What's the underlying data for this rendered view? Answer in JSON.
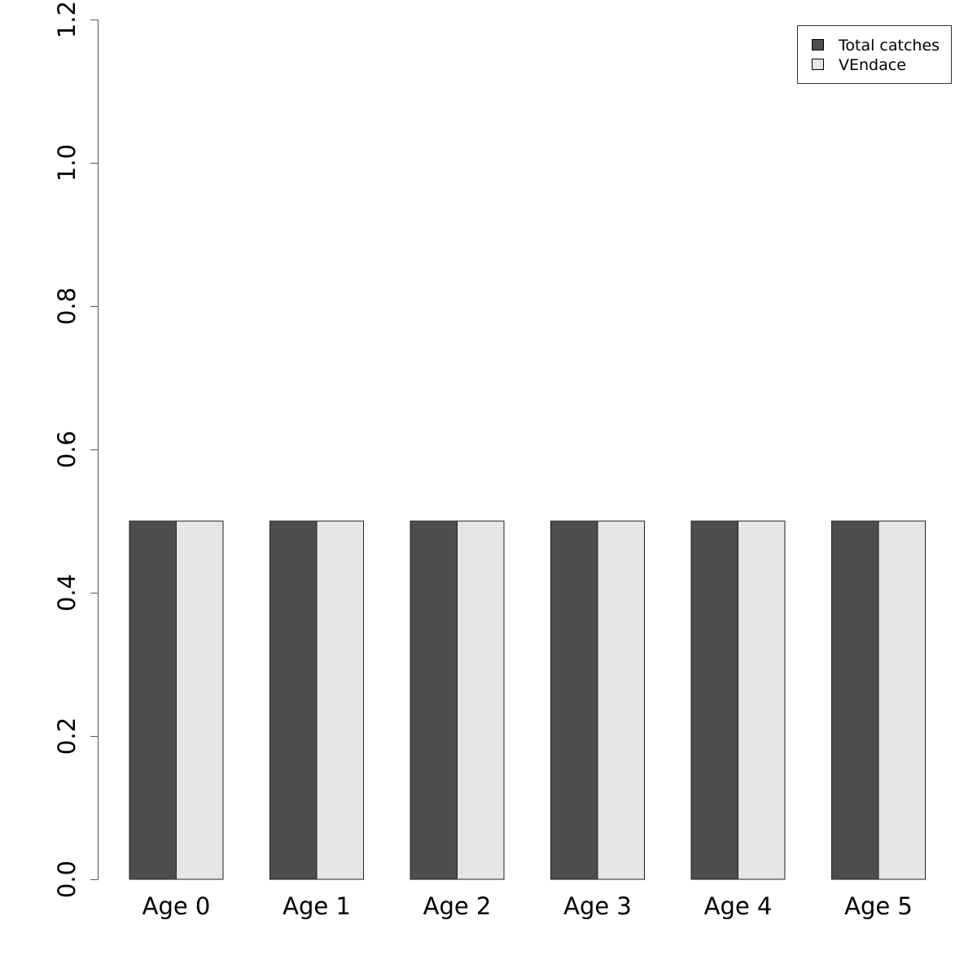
{
  "chart_data": {
    "type": "bar",
    "categories": [
      "Age 0",
      "Age 1",
      "Age 2",
      "Age 3",
      "Age 4",
      "Age 5"
    ],
    "series": [
      {
        "name": "Total catches",
        "values": [
          0.5,
          0.5,
          0.5,
          0.5,
          0.5,
          0.5
        ],
        "color": "#4d4d4d"
      },
      {
        "name": "VEndace",
        "values": [
          0.5,
          0.5,
          0.5,
          0.5,
          0.5,
          0.5
        ],
        "color": "#e6e6e6"
      }
    ],
    "ylim": [
      0,
      1.2
    ],
    "yticks": [
      "0.0",
      "0.2",
      "0.4",
      "0.6",
      "0.8",
      "1.0",
      "1.2"
    ],
    "title": "",
    "xlabel": "",
    "ylabel": "",
    "grid": false,
    "legend_position": "top-right"
  }
}
